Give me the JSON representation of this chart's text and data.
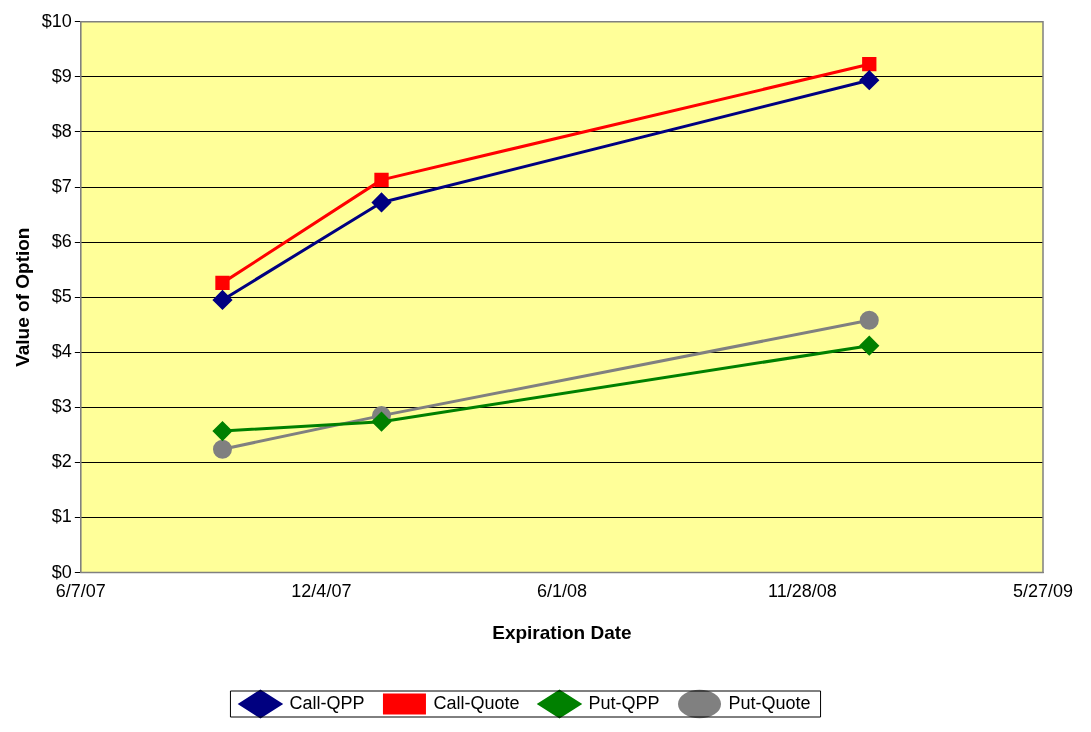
{
  "chart_data": {
    "type": "line",
    "xlabel": "Expiration Date",
    "ylabel": "Value of Option",
    "x": [
      "2007-09-21",
      "2008-01-18",
      "2009-01-17"
    ],
    "series": [
      {
        "name": "Call-QPP",
        "color": "#000080",
        "marker": "diamond",
        "values": [
          4.95,
          6.72,
          8.94
        ]
      },
      {
        "name": "Call-Quote",
        "color": "#ff0000",
        "marker": "square",
        "values": [
          5.26,
          7.13,
          9.23
        ]
      },
      {
        "name": "Put-QPP",
        "color": "#008000",
        "marker": "diamond",
        "values": [
          2.57,
          2.74,
          4.12
        ]
      },
      {
        "name": "Put-Quote",
        "color": "#808080",
        "marker": "circle",
        "values": [
          2.24,
          2.85,
          4.58
        ]
      }
    ],
    "xlim": [
      "2007-06-07",
      "2009-05-27"
    ],
    "xticks": [
      {
        "value": "2007-06-07",
        "label": "6/7/07"
      },
      {
        "value": "2007-12-04",
        "label": "12/4/07"
      },
      {
        "value": "2008-06-01",
        "label": "6/1/08"
      },
      {
        "value": "2008-11-28",
        "label": "11/28/08"
      },
      {
        "value": "2009-05-27",
        "label": "5/27/09"
      }
    ],
    "ylim": [
      0,
      10
    ],
    "yticks": [
      {
        "value": 0,
        "label": "$0"
      },
      {
        "value": 1,
        "label": "$1"
      },
      {
        "value": 2,
        "label": "$2"
      },
      {
        "value": 3,
        "label": "$3"
      },
      {
        "value": 4,
        "label": "$4"
      },
      {
        "value": 5,
        "label": "$5"
      },
      {
        "value": 6,
        "label": "$6"
      },
      {
        "value": 7,
        "label": "$7"
      },
      {
        "value": 8,
        "label": "$8"
      },
      {
        "value": 9,
        "label": "$9"
      },
      {
        "value": 10,
        "label": "$10"
      }
    ],
    "grid": "y",
    "legend": "bottom",
    "line_style": "solid"
  }
}
